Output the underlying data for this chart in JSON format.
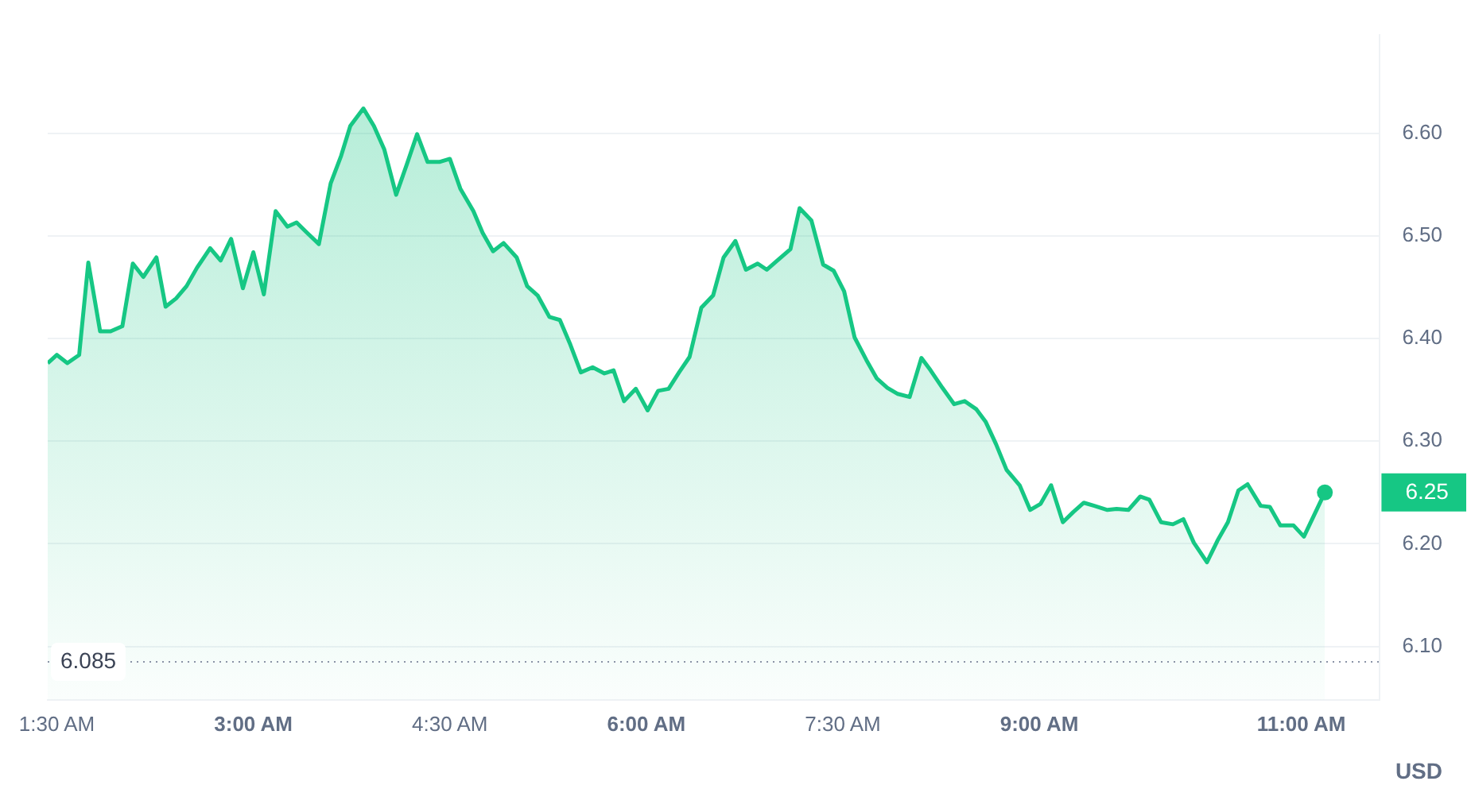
{
  "chart_data": {
    "type": "area",
    "ylabel": "USD",
    "x": [
      1.43,
      1.5,
      1.58,
      1.67,
      1.74,
      1.83,
      1.91,
      2.0,
      2.08,
      2.16,
      2.26,
      2.33,
      2.41,
      2.49,
      2.57,
      2.67,
      2.75,
      2.83,
      2.92,
      3.0,
      3.08,
      3.17,
      3.26,
      3.33,
      3.41,
      3.5,
      3.59,
      3.67,
      3.74,
      3.84,
      3.92,
      4.0,
      4.09,
      4.17,
      4.25,
      4.33,
      4.42,
      4.5,
      4.58,
      4.68,
      4.75,
      4.83,
      4.91,
      5.01,
      5.09,
      5.17,
      5.26,
      5.34,
      5.42,
      5.5,
      5.59,
      5.68,
      5.75,
      5.83,
      5.92,
      6.01,
      6.09,
      6.17,
      6.25,
      6.33,
      6.42,
      6.51,
      6.59,
      6.68,
      6.76,
      6.85,
      6.92,
      7.0,
      7.1,
      7.17,
      7.26,
      7.35,
      7.43,
      7.51,
      7.59,
      7.68,
      7.76,
      7.84,
      7.92,
      8.01,
      8.1,
      8.17,
      8.26,
      8.35,
      8.43,
      8.52,
      8.59,
      8.67,
      8.75,
      8.85,
      8.93,
      9.01,
      9.09,
      9.18,
      9.26,
      9.34,
      9.42,
      9.52,
      9.59,
      9.68,
      9.77,
      9.84,
      9.93,
      10.02,
      10.1,
      10.18,
      10.28,
      10.36,
      10.44,
      10.52,
      10.59,
      10.69,
      10.76,
      10.84,
      10.94,
      11.02,
      11.18
    ],
    "series": [
      {
        "color": "#16c784",
        "values": [
          6.376,
          6.384,
          6.376,
          6.384,
          6.474,
          6.407,
          6.407,
          6.412,
          6.473,
          6.46,
          6.479,
          6.431,
          6.439,
          6.451,
          6.469,
          6.488,
          6.476,
          6.497,
          6.449,
          6.484,
          6.443,
          6.524,
          6.509,
          6.513,
          6.503,
          6.492,
          6.551,
          6.578,
          6.607,
          6.624,
          6.607,
          6.584,
          6.54,
          6.569,
          6.599,
          6.572,
          6.572,
          6.575,
          6.546,
          6.524,
          6.503,
          6.485,
          6.493,
          6.479,
          6.451,
          6.442,
          6.421,
          6.418,
          6.394,
          6.367,
          6.372,
          6.366,
          6.369,
          6.339,
          6.351,
          6.33,
          6.349,
          6.351,
          6.367,
          6.382,
          6.43,
          6.442,
          6.479,
          6.495,
          6.467,
          6.473,
          6.467,
          6.476,
          6.487,
          6.527,
          6.515,
          6.472,
          6.466,
          6.446,
          6.401,
          6.379,
          6.361,
          6.352,
          6.346,
          6.343,
          6.381,
          6.369,
          6.352,
          6.336,
          6.339,
          6.331,
          6.319,
          6.297,
          6.272,
          6.257,
          6.233,
          6.239,
          6.257,
          6.221,
          6.231,
          6.24,
          6.237,
          6.233,
          6.234,
          6.233,
          6.246,
          6.243,
          6.221,
          6.219,
          6.224,
          6.201,
          6.182,
          6.203,
          6.221,
          6.252,
          6.258,
          6.237,
          6.236,
          6.218,
          6.218,
          6.207,
          6.25
        ]
      }
    ],
    "xlim": [
      1.43,
      11.6
    ],
    "xticks": [
      {
        "value": 1.5,
        "label": "1:30 AM"
      },
      {
        "value": 3,
        "label": "3:00 AM"
      },
      {
        "value": 4.5,
        "label": "4:30 AM"
      },
      {
        "value": 6,
        "label": "6:00 AM"
      },
      {
        "value": 7.5,
        "label": "7:30 AM"
      },
      {
        "value": 9,
        "label": "9:00 AM"
      },
      {
        "value": 11,
        "label": "11:00 AM"
      }
    ],
    "ylim": [
      6.048,
      6.696
    ],
    "yticks": [
      {
        "value": 6.1,
        "label": "6.10"
      },
      {
        "value": 6.2,
        "label": "6.20"
      },
      {
        "value": 6.3,
        "label": "6.30"
      },
      {
        "value": 6.4,
        "label": "6.40"
      },
      {
        "value": 6.5,
        "label": "6.50"
      },
      {
        "value": 6.6,
        "label": "6.60"
      }
    ],
    "grid": "y",
    "legend": false,
    "ref_lines": [
      {
        "axis": "y",
        "value": 6.085,
        "label": "6.085",
        "line_style": "dotted"
      }
    ],
    "annotations": [
      "6.25"
    ]
  }
}
